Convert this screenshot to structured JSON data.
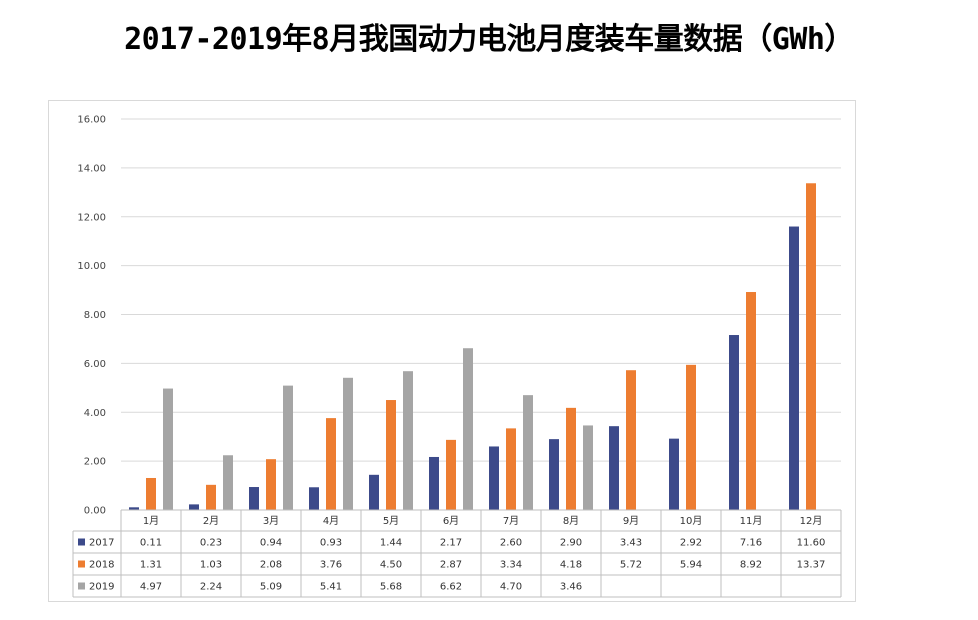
{
  "title": "2017-2019年8月我国动力电池月度装车量数据（GWh）",
  "chart_data": {
    "type": "bar",
    "categories": [
      "1月",
      "2月",
      "3月",
      "4月",
      "5月",
      "6月",
      "7月",
      "8月",
      "9月",
      "10月",
      "11月",
      "12月"
    ],
    "series": [
      {
        "name": "2017",
        "color": "#3c4a8a",
        "values": [
          0.11,
          0.23,
          0.94,
          0.93,
          1.44,
          2.17,
          2.6,
          2.9,
          3.43,
          2.92,
          7.16,
          11.6
        ]
      },
      {
        "name": "2018",
        "color": "#ed7d31",
        "values": [
          1.31,
          1.03,
          2.08,
          3.76,
          4.5,
          2.87,
          3.34,
          4.18,
          5.72,
          5.94,
          8.92,
          13.37
        ]
      },
      {
        "name": "2019",
        "color": "#a5a5a5",
        "values": [
          4.97,
          2.24,
          5.09,
          5.41,
          5.68,
          6.62,
          4.7,
          3.46,
          null,
          null,
          null,
          null
        ]
      }
    ],
    "ylim": [
      0,
      16
    ],
    "yticks": [
      "0.00",
      "2.00",
      "4.00",
      "6.00",
      "8.00",
      "10.00",
      "12.00",
      "14.00",
      "16.00"
    ],
    "grid": true,
    "legend": "data-table"
  }
}
